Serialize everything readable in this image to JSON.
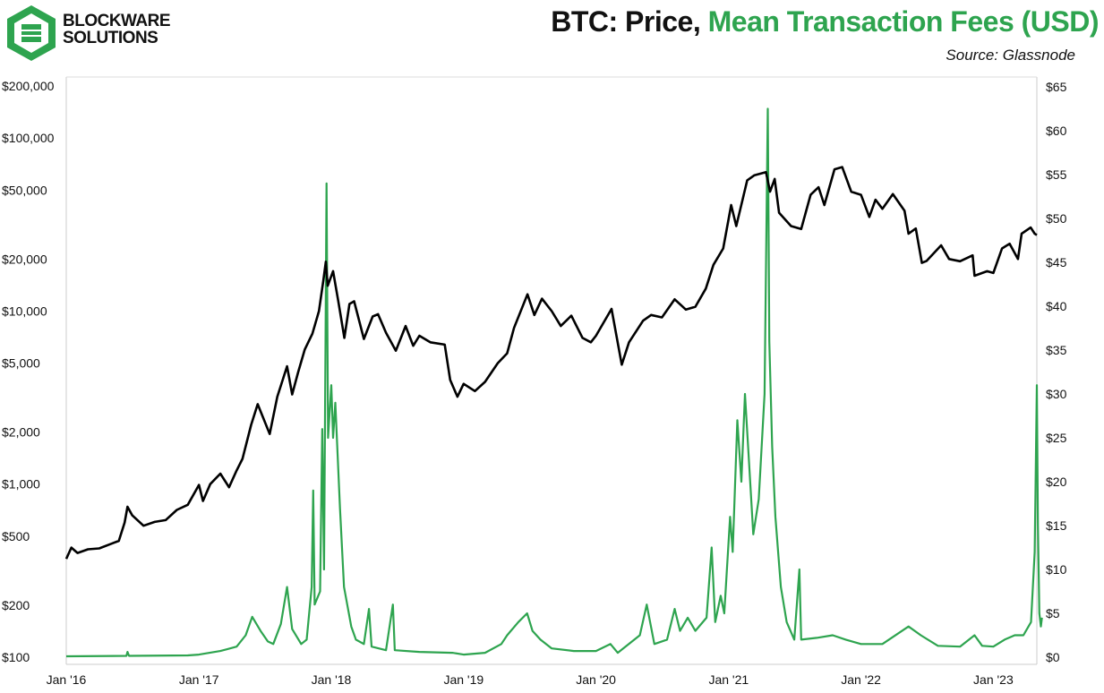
{
  "brand": {
    "line1": "BLOCKWARE",
    "line2": "SOLUTIONS",
    "logo_icon": "blockware-logo-icon",
    "logo_color": "#2ea44f"
  },
  "header": {
    "title_price": "BTC: Price,",
    "title_fees": "Mean Transaction Fees (USD)",
    "source": "Source: Glassnode"
  },
  "colors": {
    "price": "#000000",
    "fees": "#2ea44f"
  },
  "chart_data": {
    "type": "line",
    "title": "BTC: Price, Mean Transaction Fees (USD)",
    "left_axis": {
      "scale": "log",
      "range": [
        100,
        200000
      ],
      "ticks": [
        100,
        200,
        500,
        1000,
        2000,
        5000,
        10000,
        20000,
        50000,
        100000,
        200000
      ],
      "tick_labels": [
        "$100",
        "$200",
        "$500",
        "$1,000",
        "$2,000",
        "$5,000",
        "$10,000",
        "$20,000",
        "$50,000",
        "$100,000",
        "$200,000"
      ]
    },
    "right_axis": {
      "scale": "linear",
      "range": [
        0,
        65
      ],
      "ticks": [
        0,
        5,
        10,
        15,
        20,
        25,
        30,
        35,
        40,
        45,
        50,
        55,
        60,
        65
      ],
      "tick_labels": [
        "$0",
        "$5",
        "$10",
        "$15",
        "$20",
        "$25",
        "$30",
        "$35",
        "$40",
        "$45",
        "$50",
        "$55",
        "$60",
        "$65"
      ]
    },
    "x_axis": {
      "range": [
        "2016-01-01",
        "2023-05-01"
      ],
      "ticks": [
        "2016-01-01",
        "2017-01-01",
        "2018-01-01",
        "2019-01-01",
        "2020-01-01",
        "2021-01-01",
        "2022-01-01",
        "2023-01-01"
      ],
      "tick_labels": [
        "Jan '16",
        "Jan '17",
        "Jan '18",
        "Jan '19",
        "Jan '20",
        "Jan '21",
        "Jan '22",
        "Jan '23"
      ]
    },
    "grid": false,
    "series": [
      {
        "axis": "left",
        "color": "#000000",
        "points": [
          [
            "2016-01-01",
            370
          ],
          [
            "2016-01-15",
            430
          ],
          [
            "2016-02-01",
            400
          ],
          [
            "2016-03-01",
            420
          ],
          [
            "2016-04-01",
            425
          ],
          [
            "2016-05-01",
            450
          ],
          [
            "2016-05-25",
            470
          ],
          [
            "2016-06-10",
            600
          ],
          [
            "2016-06-18",
            740
          ],
          [
            "2016-07-01",
            660
          ],
          [
            "2016-08-01",
            575
          ],
          [
            "2016-09-01",
            605
          ],
          [
            "2016-10-01",
            620
          ],
          [
            "2016-11-01",
            710
          ],
          [
            "2016-12-01",
            760
          ],
          [
            "2017-01-01",
            990
          ],
          [
            "2017-01-12",
            800
          ],
          [
            "2017-02-01",
            1000
          ],
          [
            "2017-03-01",
            1150
          ],
          [
            "2017-03-25",
            960
          ],
          [
            "2017-04-15",
            1200
          ],
          [
            "2017-05-01",
            1400
          ],
          [
            "2017-05-25",
            2200
          ],
          [
            "2017-06-12",
            2900
          ],
          [
            "2017-07-15",
            1950
          ],
          [
            "2017-08-05",
            3200
          ],
          [
            "2017-09-01",
            4800
          ],
          [
            "2017-09-15",
            3300
          ],
          [
            "2017-10-01",
            4400
          ],
          [
            "2017-10-20",
            6000
          ],
          [
            "2017-11-10",
            7400
          ],
          [
            "2017-11-28",
            10000
          ],
          [
            "2017-12-10",
            15000
          ],
          [
            "2017-12-17",
            19300
          ],
          [
            "2017-12-22",
            14000
          ],
          [
            "2018-01-06",
            17000
          ],
          [
            "2018-01-20",
            11500
          ],
          [
            "2018-02-06",
            7000
          ],
          [
            "2018-02-20",
            11000
          ],
          [
            "2018-03-05",
            11400
          ],
          [
            "2018-04-01",
            6900
          ],
          [
            "2018-04-25",
            9300
          ],
          [
            "2018-05-10",
            9600
          ],
          [
            "2018-06-01",
            7500
          ],
          [
            "2018-06-28",
            5900
          ],
          [
            "2018-07-25",
            8200
          ],
          [
            "2018-08-15",
            6300
          ],
          [
            "2018-09-01",
            7200
          ],
          [
            "2018-10-01",
            6600
          ],
          [
            "2018-11-10",
            6400
          ],
          [
            "2018-11-25",
            4000
          ],
          [
            "2018-12-15",
            3200
          ],
          [
            "2019-01-01",
            3800
          ],
          [
            "2019-02-01",
            3450
          ],
          [
            "2019-03-01",
            3900
          ],
          [
            "2019-04-05",
            5000
          ],
          [
            "2019-05-01",
            5700
          ],
          [
            "2019-05-20",
            8000
          ],
          [
            "2019-06-26",
            12500
          ],
          [
            "2019-07-15",
            9500
          ],
          [
            "2019-08-05",
            11800
          ],
          [
            "2019-09-01",
            10000
          ],
          [
            "2019-09-26",
            8200
          ],
          [
            "2019-10-25",
            9400
          ],
          [
            "2019-11-25",
            7000
          ],
          [
            "2019-12-18",
            6600
          ],
          [
            "2020-01-01",
            7200
          ],
          [
            "2020-02-13",
            10300
          ],
          [
            "2020-03-12",
            4900
          ],
          [
            "2020-04-01",
            6600
          ],
          [
            "2020-05-10",
            8800
          ],
          [
            "2020-06-01",
            9500
          ],
          [
            "2020-07-01",
            9200
          ],
          [
            "2020-08-05",
            11700
          ],
          [
            "2020-09-05",
            10200
          ],
          [
            "2020-10-01",
            10600
          ],
          [
            "2020-10-30",
            13500
          ],
          [
            "2020-11-20",
            18500
          ],
          [
            "2020-12-17",
            23000
          ],
          [
            "2021-01-08",
            41000
          ],
          [
            "2021-01-22",
            31000
          ],
          [
            "2021-02-21",
            57000
          ],
          [
            "2021-03-13",
            61000
          ],
          [
            "2021-04-14",
            63500
          ],
          [
            "2021-04-25",
            49000
          ],
          [
            "2021-05-08",
            58000
          ],
          [
            "2021-05-20",
            37000
          ],
          [
            "2021-06-22",
            31000
          ],
          [
            "2021-07-20",
            29800
          ],
          [
            "2021-08-15",
            47000
          ],
          [
            "2021-09-06",
            52000
          ],
          [
            "2021-09-22",
            41000
          ],
          [
            "2021-10-20",
            66000
          ],
          [
            "2021-11-10",
            68000
          ],
          [
            "2021-12-05",
            49000
          ],
          [
            "2022-01-01",
            47000
          ],
          [
            "2022-01-24",
            35000
          ],
          [
            "2022-02-10",
            44000
          ],
          [
            "2022-03-01",
            39000
          ],
          [
            "2022-03-30",
            47400
          ],
          [
            "2022-05-01",
            38000
          ],
          [
            "2022-05-12",
            28000
          ],
          [
            "2022-06-01",
            30000
          ],
          [
            "2022-06-18",
            19000
          ],
          [
            "2022-07-01",
            19500
          ],
          [
            "2022-08-10",
            24000
          ],
          [
            "2022-09-01",
            20000
          ],
          [
            "2022-10-01",
            19400
          ],
          [
            "2022-11-05",
            21000
          ],
          [
            "2022-11-10",
            16000
          ],
          [
            "2022-12-15",
            17000
          ],
          [
            "2023-01-01",
            16600
          ],
          [
            "2023-01-25",
            23000
          ],
          [
            "2023-02-15",
            24500
          ],
          [
            "2023-03-10",
            20000
          ],
          [
            "2023-03-20",
            28000
          ],
          [
            "2023-04-14",
            30400
          ],
          [
            "2023-04-25",
            28000
          ],
          [
            "2023-05-01",
            27500
          ]
        ]
      },
      {
        "axis": "right",
        "color": "#2ea44f",
        "points": [
          [
            "2016-01-01",
            0.1
          ],
          [
            "2016-06-15",
            0.15
          ],
          [
            "2016-06-18",
            0.6
          ],
          [
            "2016-06-22",
            0.15
          ],
          [
            "2016-12-01",
            0.2
          ],
          [
            "2017-01-01",
            0.3
          ],
          [
            "2017-03-01",
            0.7
          ],
          [
            "2017-04-15",
            1.2
          ],
          [
            "2017-05-10",
            2.5
          ],
          [
            "2017-05-28",
            4.6
          ],
          [
            "2017-06-20",
            3.0
          ],
          [
            "2017-07-10",
            1.8
          ],
          [
            "2017-07-25",
            1.5
          ],
          [
            "2017-08-15",
            3.8
          ],
          [
            "2017-09-01",
            8.0
          ],
          [
            "2017-09-15",
            3.2
          ],
          [
            "2017-10-10",
            1.5
          ],
          [
            "2017-10-25",
            2.0
          ],
          [
            "2017-11-08",
            8.0
          ],
          [
            "2017-11-12",
            19.0
          ],
          [
            "2017-11-16",
            6.0
          ],
          [
            "2017-12-01",
            7.5
          ],
          [
            "2017-12-07",
            26.0
          ],
          [
            "2017-12-12",
            10.0
          ],
          [
            "2017-12-19",
            54.0
          ],
          [
            "2017-12-23",
            25.0
          ],
          [
            "2018-01-01",
            31.0
          ],
          [
            "2018-01-06",
            25.0
          ],
          [
            "2018-01-12",
            29.0
          ],
          [
            "2018-01-25",
            17.0
          ],
          [
            "2018-02-05",
            8.0
          ],
          [
            "2018-02-25",
            3.5
          ],
          [
            "2018-03-10",
            2.0
          ],
          [
            "2018-04-01",
            1.5
          ],
          [
            "2018-04-15",
            5.5
          ],
          [
            "2018-04-22",
            1.2
          ],
          [
            "2018-06-01",
            0.8
          ],
          [
            "2018-06-20",
            6.0
          ],
          [
            "2018-06-25",
            0.8
          ],
          [
            "2018-09-01",
            0.6
          ],
          [
            "2018-12-01",
            0.5
          ],
          [
            "2019-01-01",
            0.3
          ],
          [
            "2019-03-01",
            0.5
          ],
          [
            "2019-04-15",
            1.5
          ],
          [
            "2019-05-01",
            2.5
          ],
          [
            "2019-06-01",
            4.0
          ],
          [
            "2019-06-25",
            5.0
          ],
          [
            "2019-07-10",
            3.0
          ],
          [
            "2019-08-01",
            2.0
          ],
          [
            "2019-09-01",
            1.0
          ],
          [
            "2019-11-01",
            0.7
          ],
          [
            "2020-01-01",
            0.7
          ],
          [
            "2020-02-10",
            1.5
          ],
          [
            "2020-03-01",
            0.5
          ],
          [
            "2020-05-01",
            2.5
          ],
          [
            "2020-05-20",
            6.0
          ],
          [
            "2020-06-10",
            1.5
          ],
          [
            "2020-07-15",
            2.0
          ],
          [
            "2020-08-05",
            5.5
          ],
          [
            "2020-08-20",
            3.0
          ],
          [
            "2020-09-10",
            4.5
          ],
          [
            "2020-10-01",
            3.0
          ],
          [
            "2020-11-01",
            4.5
          ],
          [
            "2020-11-15",
            12.5
          ],
          [
            "2020-11-25",
            4.0
          ],
          [
            "2020-12-10",
            7.0
          ],
          [
            "2020-12-20",
            5.0
          ],
          [
            "2021-01-05",
            16.0
          ],
          [
            "2021-01-12",
            12.0
          ],
          [
            "2021-01-25",
            27.0
          ],
          [
            "2021-02-05",
            20.0
          ],
          [
            "2021-02-15",
            30.0
          ],
          [
            "2021-02-25",
            23.0
          ],
          [
            "2021-03-10",
            14.0
          ],
          [
            "2021-03-25",
            18.0
          ],
          [
            "2021-04-10",
            30.0
          ],
          [
            "2021-04-19",
            62.5
          ],
          [
            "2021-04-23",
            36.0
          ],
          [
            "2021-05-01",
            24.0
          ],
          [
            "2021-05-10",
            16.0
          ],
          [
            "2021-05-25",
            8.0
          ],
          [
            "2021-06-10",
            4.0
          ],
          [
            "2021-07-01",
            2.0
          ],
          [
            "2021-07-15",
            10.0
          ],
          [
            "2021-07-20",
            2.0
          ],
          [
            "2021-09-01",
            2.2
          ],
          [
            "2021-10-15",
            2.5
          ],
          [
            "2021-11-20",
            2.0
          ],
          [
            "2022-01-01",
            1.5
          ],
          [
            "2022-03-01",
            1.5
          ],
          [
            "2022-05-12",
            3.5
          ],
          [
            "2022-06-15",
            2.5
          ],
          [
            "2022-08-01",
            1.3
          ],
          [
            "2022-10-01",
            1.2
          ],
          [
            "2022-11-10",
            2.5
          ],
          [
            "2022-12-01",
            1.3
          ],
          [
            "2023-01-01",
            1.2
          ],
          [
            "2023-02-01",
            2.0
          ],
          [
            "2023-03-01",
            2.5
          ],
          [
            "2023-03-25",
            2.5
          ],
          [
            "2023-04-15",
            4.0
          ],
          [
            "2023-04-25",
            12.0
          ],
          [
            "2023-05-01",
            31.0
          ],
          [
            "2023-05-04",
            15.0
          ],
          [
            "2023-05-08",
            5.0
          ],
          [
            "2023-05-12",
            3.5
          ],
          [
            "2023-05-15",
            4.5
          ]
        ]
      }
    ]
  }
}
